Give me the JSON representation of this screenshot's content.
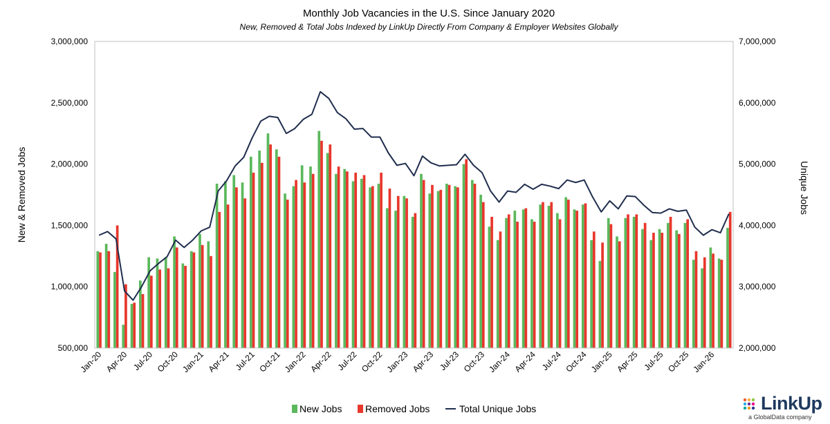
{
  "chart_data": {
    "type": "bar+line",
    "title": "Monthly Job Vacancies in the U.S. Since January 2020",
    "subtitle": "New, Removed & Total Jobs Indexed by LinkUp Directly From Company & Employer Websites Globally",
    "ylabel_left": "New & Removed Jobs",
    "ylabel_right": "Unique Jobs",
    "ylim_left": [
      500000,
      3000000
    ],
    "ylim_right": [
      2000000,
      7000000
    ],
    "yticks_left": [
      "500,000",
      "1,000,000",
      "1,500,000",
      "2,000,000",
      "2,500,000",
      "3,000,000"
    ],
    "yticks_right": [
      "2,000,000",
      "3,000,000",
      "4,000,000",
      "5,000,000",
      "6,000,000",
      "7,000,000"
    ],
    "yticks_left_values": [
      500000,
      1000000,
      1500000,
      2000000,
      2500000,
      3000000
    ],
    "yticks_right_values": [
      2000000,
      3000000,
      4000000,
      5000000,
      6000000,
      7000000
    ],
    "x_tick_labels": [
      "Jan-20",
      "Apr-20",
      "Jul-20",
      "Oct-20",
      "Jan-21",
      "Apr-21",
      "Jul-21",
      "Oct-21",
      "Jan-22",
      "Apr-22",
      "Jul-22",
      "Oct-22",
      "Jan-23",
      "Apr-23",
      "Jul-23",
      "Oct-23",
      "Jan-24",
      "Apr-24",
      "Jul-24",
      "Oct-24",
      "Jan-25",
      "Apr-25",
      "Jul-25",
      "Oct-25",
      "Jan-26"
    ],
    "x_tick_every": 3,
    "months_count": 75,
    "legend_position": "bottom",
    "grid": false,
    "colors": {
      "new": "#5cb85c",
      "removed": "#e8372c",
      "total": "#1f2d4d"
    },
    "series": [
      {
        "name": "New Jobs",
        "kind": "bar",
        "values": [
          1290000,
          1350000,
          1120000,
          690000,
          860000,
          1050000,
          1240000,
          1230000,
          1240000,
          1410000,
          1190000,
          1290000,
          1430000,
          1370000,
          1840000,
          1860000,
          1910000,
          1850000,
          2060000,
          2110000,
          2250000,
          2120000,
          1760000,
          1820000,
          1990000,
          1980000,
          2270000,
          2090000,
          1920000,
          1960000,
          1860000,
          1880000,
          1810000,
          1840000,
          1640000,
          1620000,
          1740000,
          1570000,
          1920000,
          1760000,
          1780000,
          1840000,
          1820000,
          2000000,
          1870000,
          1750000,
          1490000,
          1380000,
          1560000,
          1620000,
          1630000,
          1550000,
          1670000,
          1660000,
          1600000,
          1730000,
          1630000,
          1670000,
          1380000,
          1210000,
          1560000,
          1410000,
          1560000,
          1570000,
          1470000,
          1380000,
          1470000,
          1520000,
          1460000,
          1520000,
          1220000,
          1150000,
          1320000,
          1230000,
          1480000
        ]
      },
      {
        "name": "Removed Jobs",
        "kind": "bar",
        "values": [
          1280000,
          1290000,
          1500000,
          1020000,
          870000,
          940000,
          1090000,
          1140000,
          1150000,
          1320000,
          1170000,
          1280000,
          1340000,
          1250000,
          1610000,
          1670000,
          1810000,
          1720000,
          1930000,
          2010000,
          2160000,
          2060000,
          1710000,
          1870000,
          1850000,
          1920000,
          2190000,
          2160000,
          1980000,
          1940000,
          1930000,
          1910000,
          1820000,
          1930000,
          1800000,
          1740000,
          1720000,
          1600000,
          1870000,
          1830000,
          1790000,
          1830000,
          1810000,
          2040000,
          1840000,
          1690000,
          1570000,
          1450000,
          1590000,
          1530000,
          1640000,
          1530000,
          1690000,
          1690000,
          1550000,
          1710000,
          1620000,
          1680000,
          1450000,
          1360000,
          1510000,
          1370000,
          1590000,
          1590000,
          1520000,
          1440000,
          1440000,
          1570000,
          1430000,
          1550000,
          1290000,
          1240000,
          1270000,
          1220000,
          1610000
        ]
      },
      {
        "name": "Total Unique Jobs",
        "kind": "line",
        "axis": "right",
        "values": [
          3840000,
          3900000,
          3780000,
          2930000,
          2780000,
          3000000,
          3260000,
          3380000,
          3490000,
          3760000,
          3640000,
          3760000,
          3910000,
          3970000,
          4560000,
          4730000,
          4970000,
          5110000,
          5430000,
          5700000,
          5780000,
          5760000,
          5500000,
          5580000,
          5730000,
          5810000,
          6180000,
          6070000,
          5840000,
          5740000,
          5570000,
          5580000,
          5440000,
          5440000,
          5180000,
          4980000,
          5010000,
          4810000,
          5130000,
          5020000,
          4970000,
          4980000,
          4990000,
          5160000,
          4980000,
          4860000,
          4560000,
          4380000,
          4560000,
          4540000,
          4670000,
          4590000,
          4670000,
          4640000,
          4600000,
          4740000,
          4700000,
          4740000,
          4460000,
          4220000,
          4400000,
          4270000,
          4480000,
          4470000,
          4330000,
          4210000,
          4200000,
          4270000,
          4230000,
          4250000,
          3970000,
          3840000,
          3930000,
          3880000,
          4190000
        ]
      }
    ]
  },
  "logo": {
    "word": "LinkUp",
    "tagline": "a GlobalData company"
  }
}
